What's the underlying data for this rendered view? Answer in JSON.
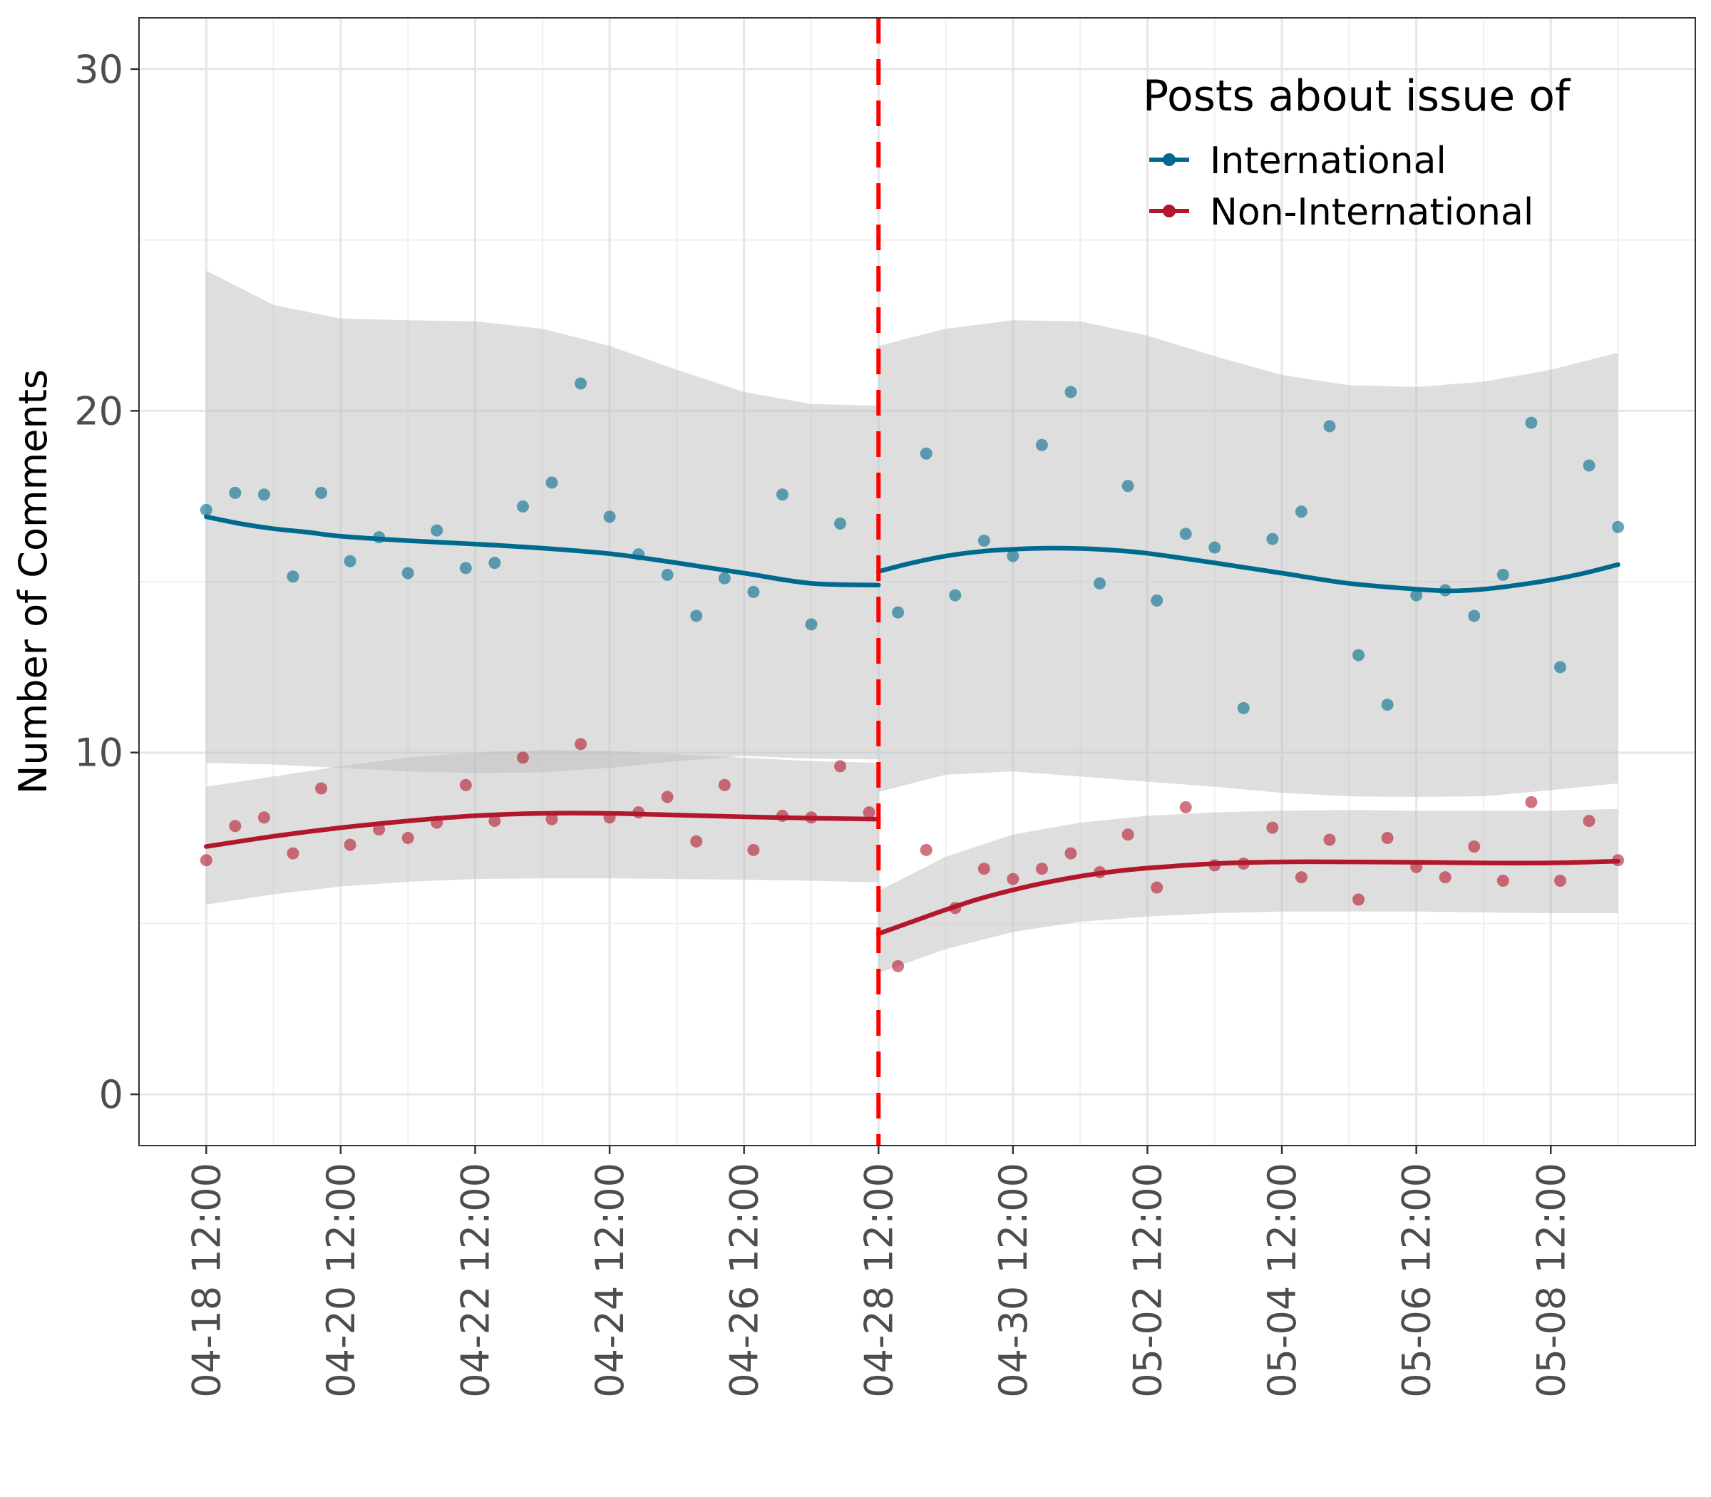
{
  "chart_data": {
    "type": "scatter",
    "ylabel": "Number of Comments",
    "xlabel": "",
    "ylim": [
      -1.5,
      31.5
    ],
    "xlim": [
      -1,
      22.15
    ],
    "y_ticks": [
      0,
      10,
      20,
      30
    ],
    "x_ticks": [
      0,
      2,
      4,
      6,
      8,
      10,
      12,
      14,
      16,
      18,
      20
    ],
    "x_tick_labels": [
      "04-18 12:00",
      "04-20 12:00",
      "04-22 12:00",
      "04-24 12:00",
      "04-26 12:00",
      "04-28 12:00",
      "04-30 12:00",
      "05-02 12:00",
      "05-04 12:00",
      "05-06 12:00",
      "05-08 12:00"
    ],
    "x_unit": "days since 04-18 12:00 (ticks every 2 days)",
    "cutoff": 10,
    "legend": {
      "title": "Posts about issue of",
      "position": "top-right",
      "entries": [
        "International",
        "Non-International"
      ]
    },
    "series": [
      {
        "name": "International",
        "color": "#006a8e",
        "points": [
          [
            0.0,
            17.1
          ],
          [
            0.43,
            17.6
          ],
          [
            0.86,
            17.55
          ],
          [
            1.29,
            15.15
          ],
          [
            1.71,
            17.6
          ],
          [
            2.14,
            15.6
          ],
          [
            2.57,
            16.3
          ],
          [
            3.0,
            15.25
          ],
          [
            3.43,
            16.5
          ],
          [
            3.86,
            15.4
          ],
          [
            4.29,
            15.55
          ],
          [
            4.71,
            17.2
          ],
          [
            5.14,
            17.9
          ],
          [
            5.57,
            20.8
          ],
          [
            6.0,
            16.9
          ],
          [
            6.43,
            15.8
          ],
          [
            6.86,
            15.2
          ],
          [
            7.29,
            14.0
          ],
          [
            7.71,
            15.1
          ],
          [
            8.14,
            14.7
          ],
          [
            8.57,
            17.55
          ],
          [
            9.0,
            13.75
          ],
          [
            9.43,
            16.7
          ],
          [
            10.29,
            14.1
          ],
          [
            10.71,
            18.75
          ],
          [
            11.14,
            14.6
          ],
          [
            11.57,
            16.2
          ],
          [
            12.0,
            15.75
          ],
          [
            12.43,
            19.0
          ],
          [
            12.86,
            20.55
          ],
          [
            13.29,
            14.95
          ],
          [
            13.71,
            17.8
          ],
          [
            14.14,
            14.45
          ],
          [
            14.57,
            16.4
          ],
          [
            15.0,
            16.0
          ],
          [
            15.43,
            11.3
          ],
          [
            15.86,
            16.25
          ],
          [
            16.29,
            17.05
          ],
          [
            16.71,
            19.55
          ],
          [
            17.14,
            12.85
          ],
          [
            17.57,
            11.4
          ],
          [
            18.0,
            14.6
          ],
          [
            18.43,
            14.75
          ],
          [
            18.86,
            14.0
          ],
          [
            19.29,
            15.2
          ],
          [
            19.71,
            19.65
          ],
          [
            20.14,
            12.5
          ],
          [
            20.57,
            18.4
          ],
          [
            21.0,
            16.6
          ]
        ],
        "fit_pre": [
          [
            0,
            16.9
          ],
          [
            0.5,
            16.7
          ],
          [
            1,
            16.55
          ],
          [
            1.5,
            16.45
          ],
          [
            2,
            16.33
          ],
          [
            3,
            16.2
          ],
          [
            4,
            16.1
          ],
          [
            5,
            15.98
          ],
          [
            6,
            15.82
          ],
          [
            7,
            15.55
          ],
          [
            8,
            15.25
          ],
          [
            9,
            14.95
          ],
          [
            10,
            14.9
          ]
        ],
        "fit_post": [
          [
            10,
            15.3
          ],
          [
            10.5,
            15.55
          ],
          [
            11,
            15.75
          ],
          [
            11.5,
            15.88
          ],
          [
            12,
            15.95
          ],
          [
            12.5,
            15.98
          ],
          [
            13,
            15.97
          ],
          [
            13.5,
            15.92
          ],
          [
            14,
            15.83
          ],
          [
            15,
            15.55
          ],
          [
            16,
            15.25
          ],
          [
            17,
            14.95
          ],
          [
            18,
            14.78
          ],
          [
            18.5,
            14.73
          ],
          [
            19,
            14.78
          ],
          [
            19.5,
            14.9
          ],
          [
            20,
            15.05
          ],
          [
            20.5,
            15.25
          ],
          [
            21,
            15.5
          ]
        ],
        "ci_pre_upper": [
          [
            0,
            24.1
          ],
          [
            1,
            23.1
          ],
          [
            2,
            22.7
          ],
          [
            3,
            22.65
          ],
          [
            4,
            22.62
          ],
          [
            5,
            22.4
          ],
          [
            6,
            21.9
          ],
          [
            7,
            21.2
          ],
          [
            8,
            20.55
          ],
          [
            9,
            20.2
          ],
          [
            10,
            20.15
          ]
        ],
        "ci_pre_lower": [
          [
            0,
            9.7
          ],
          [
            1,
            9.65
          ],
          [
            2,
            9.55
          ],
          [
            3,
            9.45
          ],
          [
            4,
            9.4
          ],
          [
            5,
            9.42
          ],
          [
            6,
            9.55
          ],
          [
            7,
            9.75
          ],
          [
            8,
            9.9
          ],
          [
            9,
            9.82
          ],
          [
            10,
            9.8
          ]
        ],
        "ci_post_upper": [
          [
            10,
            21.9
          ],
          [
            11,
            22.4
          ],
          [
            12,
            22.65
          ],
          [
            13,
            22.62
          ],
          [
            14,
            22.2
          ],
          [
            15,
            21.6
          ],
          [
            16,
            21.05
          ],
          [
            17,
            20.75
          ],
          [
            18,
            20.7
          ],
          [
            19,
            20.85
          ],
          [
            20,
            21.2
          ],
          [
            21,
            21.7
          ]
        ],
        "ci_post_lower": [
          [
            10,
            8.85
          ],
          [
            11,
            9.35
          ],
          [
            12,
            9.45
          ],
          [
            13,
            9.3
          ],
          [
            14,
            9.15
          ],
          [
            15,
            9.0
          ],
          [
            16,
            8.82
          ],
          [
            17,
            8.72
          ],
          [
            18,
            8.7
          ],
          [
            19,
            8.72
          ],
          [
            20,
            8.9
          ],
          [
            21,
            9.1
          ]
        ]
      },
      {
        "name": "Non-International",
        "color": "#b2182b",
        "points": [
          [
            0.0,
            6.85
          ],
          [
            0.43,
            7.85
          ],
          [
            0.86,
            8.1
          ],
          [
            1.29,
            7.05
          ],
          [
            1.71,
            8.95
          ],
          [
            2.14,
            7.3
          ],
          [
            2.57,
            7.75
          ],
          [
            3.0,
            7.5
          ],
          [
            3.43,
            7.95
          ],
          [
            3.86,
            9.05
          ],
          [
            4.29,
            8.0
          ],
          [
            4.71,
            9.85
          ],
          [
            5.14,
            8.05
          ],
          [
            5.57,
            10.25
          ],
          [
            6.0,
            8.1
          ],
          [
            6.43,
            8.25
          ],
          [
            6.86,
            8.7
          ],
          [
            7.29,
            7.4
          ],
          [
            7.71,
            9.05
          ],
          [
            8.14,
            7.15
          ],
          [
            8.57,
            8.15
          ],
          [
            9.0,
            8.1
          ],
          [
            9.43,
            9.6
          ],
          [
            9.86,
            8.25
          ],
          [
            10.29,
            3.75
          ],
          [
            10.71,
            7.15
          ],
          [
            11.14,
            5.45
          ],
          [
            11.57,
            6.6
          ],
          [
            12.0,
            6.3
          ],
          [
            12.43,
            6.6
          ],
          [
            12.86,
            7.05
          ],
          [
            13.29,
            6.5
          ],
          [
            13.71,
            7.6
          ],
          [
            14.14,
            6.05
          ],
          [
            14.57,
            8.4
          ],
          [
            15.0,
            6.7
          ],
          [
            15.43,
            6.75
          ],
          [
            15.86,
            7.8
          ],
          [
            16.29,
            6.35
          ],
          [
            16.71,
            7.45
          ],
          [
            17.14,
            5.7
          ],
          [
            17.57,
            7.5
          ],
          [
            18.0,
            6.65
          ],
          [
            18.43,
            6.35
          ],
          [
            18.86,
            7.25
          ],
          [
            19.29,
            6.25
          ],
          [
            19.71,
            8.55
          ],
          [
            20.14,
            6.25
          ],
          [
            20.57,
            8.0
          ],
          [
            21.0,
            6.85
          ]
        ],
        "fit_pre": [
          [
            0,
            7.25
          ],
          [
            1,
            7.55
          ],
          [
            2,
            7.8
          ],
          [
            3,
            8.0
          ],
          [
            4,
            8.15
          ],
          [
            5,
            8.22
          ],
          [
            6,
            8.22
          ],
          [
            7,
            8.17
          ],
          [
            8,
            8.12
          ],
          [
            9,
            8.08
          ],
          [
            10,
            8.05
          ]
        ],
        "fit_post": [
          [
            10,
            4.7
          ],
          [
            10.5,
            5.05
          ],
          [
            11,
            5.4
          ],
          [
            11.5,
            5.72
          ],
          [
            12,
            5.98
          ],
          [
            12.5,
            6.2
          ],
          [
            13,
            6.38
          ],
          [
            13.5,
            6.52
          ],
          [
            14,
            6.62
          ],
          [
            15,
            6.75
          ],
          [
            16,
            6.8
          ],
          [
            17,
            6.8
          ],
          [
            18,
            6.79
          ],
          [
            19,
            6.77
          ],
          [
            20,
            6.77
          ],
          [
            21,
            6.82
          ]
        ],
        "ci_pre_upper": [
          [
            0,
            9.0
          ],
          [
            1,
            9.3
          ],
          [
            2,
            9.6
          ],
          [
            3,
            9.85
          ],
          [
            4,
            10.0
          ],
          [
            5,
            10.07
          ],
          [
            6,
            10.05
          ],
          [
            7,
            9.95
          ],
          [
            8,
            9.85
          ],
          [
            9,
            9.75
          ],
          [
            10,
            9.7
          ]
        ],
        "ci_pre_lower": [
          [
            0,
            5.55
          ],
          [
            1,
            5.85
          ],
          [
            2,
            6.08
          ],
          [
            3,
            6.22
          ],
          [
            4,
            6.3
          ],
          [
            5,
            6.32
          ],
          [
            6,
            6.32
          ],
          [
            7,
            6.3
          ],
          [
            8,
            6.28
          ],
          [
            9,
            6.25
          ],
          [
            10,
            6.2
          ]
        ],
        "ci_post_upper": [
          [
            10,
            5.95
          ],
          [
            11,
            6.95
          ],
          [
            12,
            7.6
          ],
          [
            13,
            7.95
          ],
          [
            14,
            8.15
          ],
          [
            15,
            8.25
          ],
          [
            16,
            8.3
          ],
          [
            17,
            8.32
          ],
          [
            18,
            8.3
          ],
          [
            19,
            8.3
          ],
          [
            20,
            8.3
          ],
          [
            21,
            8.35
          ]
        ],
        "ci_post_lower": [
          [
            10,
            3.55
          ],
          [
            11,
            4.25
          ],
          [
            12,
            4.75
          ],
          [
            13,
            5.05
          ],
          [
            14,
            5.2
          ],
          [
            15,
            5.3
          ],
          [
            16,
            5.35
          ],
          [
            17,
            5.35
          ],
          [
            18,
            5.35
          ],
          [
            19,
            5.32
          ],
          [
            20,
            5.3
          ],
          [
            21,
            5.3
          ]
        ]
      }
    ]
  }
}
